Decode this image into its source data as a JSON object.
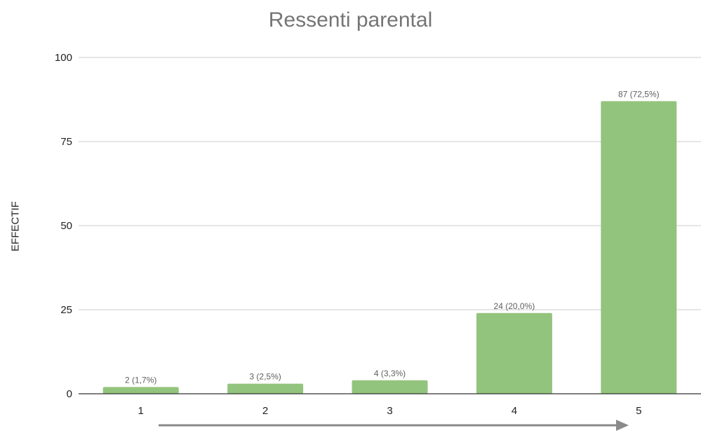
{
  "chart_data": {
    "type": "bar",
    "title": "Ressenti parental",
    "xlabel": "",
    "ylabel": "EFFECTIF",
    "categories": [
      "1",
      "2",
      "3",
      "4",
      "5"
    ],
    "values": [
      2,
      3,
      4,
      24,
      87
    ],
    "data_labels": [
      "2 (1,7%)",
      "3 (2,5%)",
      "4 (3,3%)",
      "24 (20,0%)",
      "87 (72,5%)"
    ],
    "ylim": [
      0,
      100
    ],
    "yticks": [
      "0",
      "25",
      "50",
      "75",
      "100"
    ],
    "grid": true,
    "legend": "none",
    "bar_color": "#93c47d",
    "arrow_color": "#8a8a8a"
  }
}
